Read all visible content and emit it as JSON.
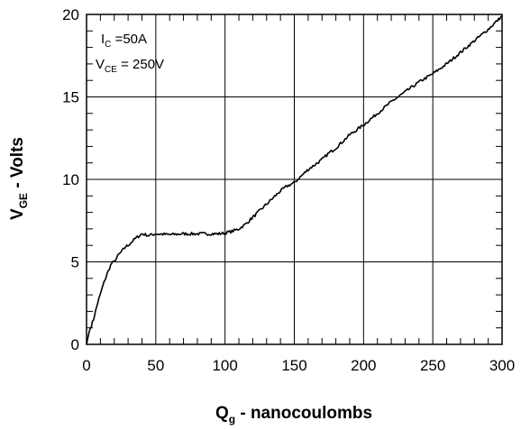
{
  "chart_data": {
    "type": "line",
    "xlabel": {
      "main": "Q",
      "sub": "g",
      "suffix": " - nanocoulombs"
    },
    "ylabel": {
      "main": "V",
      "sub": "GE",
      "suffix": " - Volts"
    },
    "xlim": [
      0,
      300
    ],
    "ylim": [
      0,
      20
    ],
    "xticks": [
      0,
      50,
      100,
      150,
      200,
      250,
      300
    ],
    "yticks": [
      0,
      5,
      10,
      15,
      20
    ],
    "xtick_labels": [
      "0",
      "50",
      "100",
      "150",
      "200",
      "250",
      "300"
    ],
    "ytick_labels": [
      "0",
      "5",
      "10",
      "15",
      "20"
    ],
    "grid": true,
    "annotations": [
      {
        "main": "I",
        "sub": "C",
        "rest": " =50A"
      },
      {
        "main": "V",
        "sub": "CE",
        "rest": " = 250V"
      }
    ],
    "series": [
      {
        "x": [
          0,
          2,
          5,
          8,
          12,
          15,
          18,
          20,
          22,
          25,
          28,
          30,
          35,
          40,
          45,
          50,
          60,
          70,
          80,
          90,
          95,
          100,
          105,
          110,
          115,
          120,
          125,
          130,
          135,
          140,
          145,
          150,
          155,
          160,
          165,
          170,
          175,
          180,
          185,
          190,
          195,
          200,
          210,
          220,
          230,
          240,
          250,
          260,
          270,
          280,
          290,
          300
        ],
        "y": [
          0,
          0.8,
          1.5,
          2.5,
          3.6,
          4.3,
          4.9,
          5.0,
          5.3,
          5.6,
          5.9,
          6.0,
          6.4,
          6.7,
          6.6,
          6.7,
          6.65,
          6.7,
          6.7,
          6.7,
          6.7,
          6.75,
          6.85,
          7.0,
          7.3,
          7.7,
          8.1,
          8.5,
          8.9,
          9.3,
          9.6,
          9.8,
          10.2,
          10.6,
          10.9,
          11.2,
          11.6,
          11.9,
          12.3,
          12.7,
          13.0,
          13.3,
          14.0,
          14.7,
          15.3,
          15.9,
          16.4,
          17.0,
          17.7,
          18.4,
          19.1,
          19.9
        ]
      }
    ]
  }
}
